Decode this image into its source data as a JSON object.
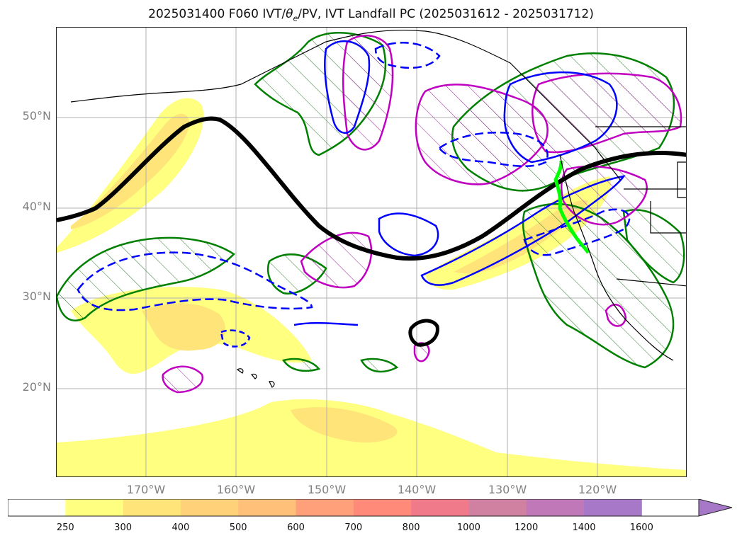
{
  "title": {
    "prefix": "2025031400 F060 IVT/",
    "theta_symbol": "θ",
    "theta_subscript": "e",
    "suffix": "/PV, IVT Landfall PC (2025031612 - 2025031712)"
  },
  "map": {
    "lat_labels": [
      "50°N",
      "40°N",
      "30°N",
      "20°N"
    ],
    "lon_labels": [
      "170°W",
      "160°W",
      "150°W",
      "140°W",
      "130°W",
      "120°W"
    ],
    "gridlines": true,
    "gridline_color": "#b0b0b0"
  },
  "layers": {
    "ivt_fill_colors": [
      "#ffff80",
      "#ffe680",
      "#ffd27a"
    ],
    "theta_e_contour_color": "#008000",
    "pv_positive_color": "#c000c0",
    "pv_negative_color": "#0000ff",
    "steering_line_color": "#000000",
    "landfall_line_color": "#00ff00",
    "coastline_color": "#000000"
  },
  "colorbar": {
    "ticks": [
      "250",
      "300",
      "400",
      "500",
      "600",
      "700",
      "800",
      "1000",
      "1200",
      "1400",
      "1600"
    ],
    "colors": [
      "#ffffff",
      "#ffff80",
      "#ffe47a",
      "#ffd27a",
      "#ffc07a",
      "#ffa07a",
      "#ff8a7a",
      "#f07a8a",
      "#d080a0",
      "#c078b8",
      "#a878c8"
    ],
    "extend": "max"
  }
}
